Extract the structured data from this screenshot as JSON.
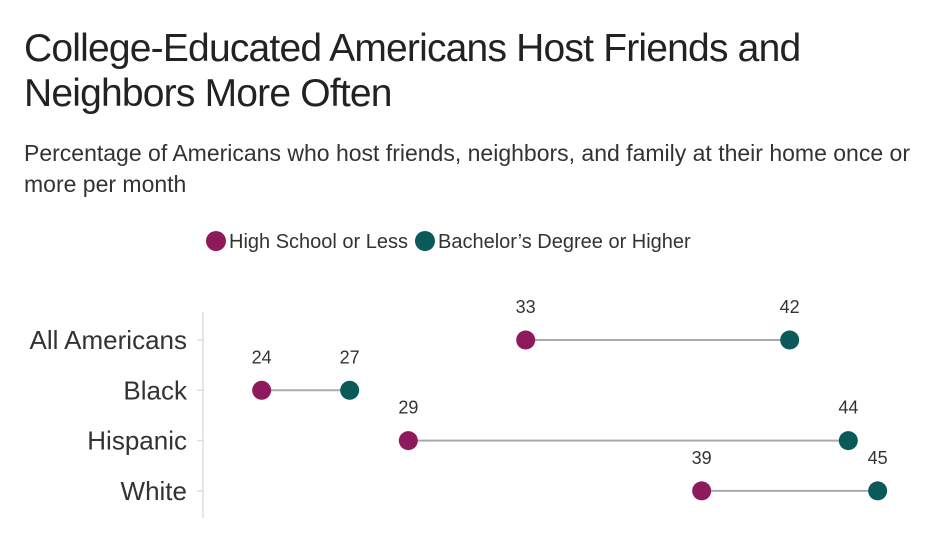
{
  "chart_data": {
    "type": "dumbbell",
    "title": "College-Educated Americans Host Friends and Neighbors More Often",
    "subtitle": "Percentage of Americans who host friends, neighbors, and family at their home once or more per month",
    "categories": [
      "All Americans",
      "Black",
      "Hispanic",
      "White"
    ],
    "series": [
      {
        "name": "High School or Less",
        "color": "#8E1A5B",
        "values": [
          33,
          24,
          29,
          39
        ]
      },
      {
        "name": "Bachelor’s Degree or Higher",
        "color": "#0A5A5A",
        "values": [
          42,
          27,
          44,
          45
        ]
      }
    ],
    "xlim": [
      22,
      46
    ],
    "legend": "top-center",
    "grid": false
  }
}
